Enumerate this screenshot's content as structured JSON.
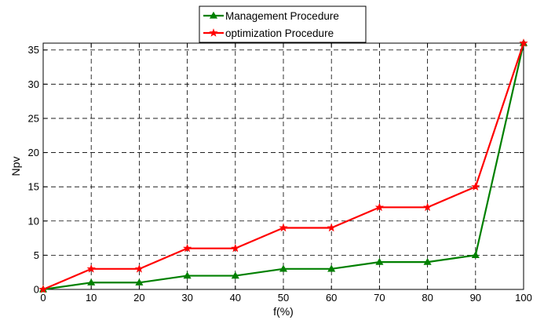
{
  "chart_data": {
    "type": "line",
    "title": "",
    "xlabel": "f(%)",
    "ylabel": "Npv",
    "x": [
      0,
      10,
      20,
      30,
      40,
      50,
      60,
      70,
      80,
      90,
      100
    ],
    "xlim": [
      0,
      100
    ],
    "ylim": [
      0,
      36
    ],
    "xticks": [
      0,
      10,
      20,
      30,
      40,
      50,
      60,
      70,
      80,
      90,
      100
    ],
    "yticks": [
      0,
      5,
      10,
      15,
      20,
      25,
      30,
      35
    ],
    "grid": true,
    "legend_position": "top",
    "series": [
      {
        "name": "Management Procedure",
        "color": "#008000",
        "marker": "triangle",
        "values": [
          0,
          1,
          1,
          2,
          2,
          3,
          3,
          4,
          4,
          5,
          36
        ]
      },
      {
        "name": "optimization Procedure",
        "color": "#ff0000",
        "marker": "star",
        "values": [
          0,
          3,
          3,
          6,
          6,
          9,
          9,
          12,
          12,
          15,
          36
        ]
      }
    ]
  }
}
